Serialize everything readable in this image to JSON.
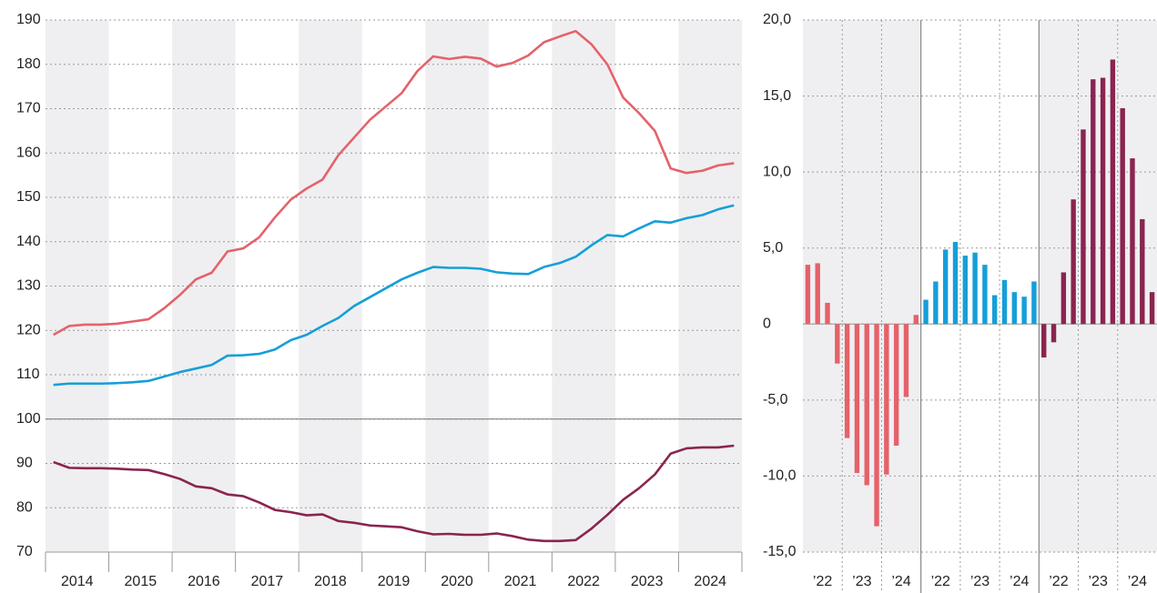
{
  "chart_data": [
    {
      "type": "line",
      "categories": [
        "2014",
        "2015",
        "2016",
        "2017",
        "2018",
        "2019",
        "2020",
        "2021",
        "2022",
        "2023",
        "2024"
      ],
      "x": [
        2014.125,
        2014.375,
        2014.625,
        2014.875,
        2015.125,
        2015.375,
        2015.625,
        2015.875,
        2016.125,
        2016.375,
        2016.625,
        2016.875,
        2017.125,
        2017.375,
        2017.625,
        2017.875,
        2018.125,
        2018.375,
        2018.625,
        2018.875,
        2019.125,
        2019.375,
        2019.625,
        2019.875,
        2020.125,
        2020.375,
        2020.625,
        2020.875,
        2021.125,
        2021.375,
        2021.625,
        2021.875,
        2022.125,
        2022.375,
        2022.625,
        2022.875,
        2023.125,
        2023.375,
        2023.625,
        2023.875,
        2024.125,
        2024.375,
        2024.625,
        2024.875
      ],
      "xlim": [
        2014,
        2025
      ],
      "ylim": [
        70,
        190
      ],
      "yticks": [
        70,
        80,
        90,
        100,
        110,
        120,
        130,
        140,
        150,
        160,
        170,
        180,
        190
      ],
      "reference_line": 100,
      "grid": true,
      "series": [
        {
          "color": "#e5626a",
          "values": [
            119,
            121,
            121.3,
            121.3,
            121.5,
            122,
            122.5,
            125,
            128,
            131.5,
            133,
            137.8,
            138.5,
            141,
            145.5,
            149.5,
            152,
            154,
            159.5,
            163.5,
            167.5,
            170.5,
            173.5,
            178.5,
            181.8,
            181.2,
            181.7,
            181.3,
            179.5,
            180.3,
            182,
            185,
            186.3,
            187.5,
            184.5,
            180,
            172.5,
            169,
            165,
            156.5,
            155.5,
            156,
            157.2,
            157.7
          ]
        },
        {
          "color": "#159fd8",
          "values": [
            107.7,
            108,
            108,
            108,
            108.1,
            108.3,
            108.6,
            109.6,
            110.6,
            111.4,
            112.2,
            114.3,
            114.4,
            114.7,
            115.7,
            117.8,
            119,
            121,
            122.8,
            125.5,
            127.5,
            129.5,
            131.5,
            133,
            134.3,
            134.1,
            134.1,
            133.9,
            133.1,
            132.8,
            132.7,
            134.3,
            135.2,
            136.6,
            139.2,
            141.5,
            141.2,
            143,
            144.6,
            144.3,
            145.3,
            146,
            147.3,
            148.2
          ]
        },
        {
          "color": "#8a2450",
          "values": [
            90.3,
            89,
            88.9,
            88.9,
            88.8,
            88.6,
            88.5,
            87.6,
            86.5,
            84.8,
            84.4,
            83,
            82.6,
            81.2,
            79.5,
            79,
            78.3,
            78.5,
            77,
            76.6,
            76,
            75.8,
            75.6,
            74.7,
            74,
            74.1,
            73.9,
            73.9,
            74.2,
            73.6,
            72.8,
            72.5,
            72.5,
            72.7,
            75.3,
            78.4,
            81.8,
            84.4,
            87.5,
            92.2,
            93.4,
            93.6,
            93.6,
            94
          ]
        }
      ]
    },
    {
      "type": "bar",
      "ylim": [
        -15,
        20
      ],
      "yticks": [
        {
          "value": -15,
          "label": "-15,0"
        },
        {
          "value": -10,
          "label": "-10,0"
        },
        {
          "value": -5,
          "label": "-5,0"
        },
        0,
        {
          "value": 5,
          "label": "5,0"
        },
        {
          "value": 10,
          "label": "10,0"
        },
        {
          "value": 15,
          "label": "15,0"
        },
        {
          "value": 20,
          "label": "20,0"
        }
      ],
      "grid": true,
      "panels": [
        {
          "color": "#e5626a",
          "years": [
            {
              "label": "’22",
              "values": [
                3.9,
                4.0,
                1.4,
                -2.6
              ]
            },
            {
              "label": "’23",
              "values": [
                -7.5,
                -9.8,
                -10.6,
                -13.3
              ]
            },
            {
              "label": "’24",
              "values": [
                -9.9,
                -8.0,
                -4.8,
                0.6
              ]
            }
          ]
        },
        {
          "color": "#159fd8",
          "years": [
            {
              "label": "’22",
              "values": [
                1.6,
                2.8,
                4.9,
                5.4
              ]
            },
            {
              "label": "’23",
              "values": [
                4.5,
                4.7,
                3.9,
                1.9
              ]
            },
            {
              "label": "’24",
              "values": [
                2.9,
                2.1,
                1.8,
                2.8
              ]
            }
          ]
        },
        {
          "color": "#8a2450",
          "years": [
            {
              "label": "’22",
              "values": [
                -2.2,
                -1.2,
                3.4,
                8.2
              ]
            },
            {
              "label": "’23",
              "values": [
                12.8,
                16.1,
                16.2,
                17.4
              ]
            },
            {
              "label": "’24",
              "values": [
                14.2,
                10.9,
                6.9,
                2.1
              ]
            }
          ]
        }
      ]
    }
  ]
}
